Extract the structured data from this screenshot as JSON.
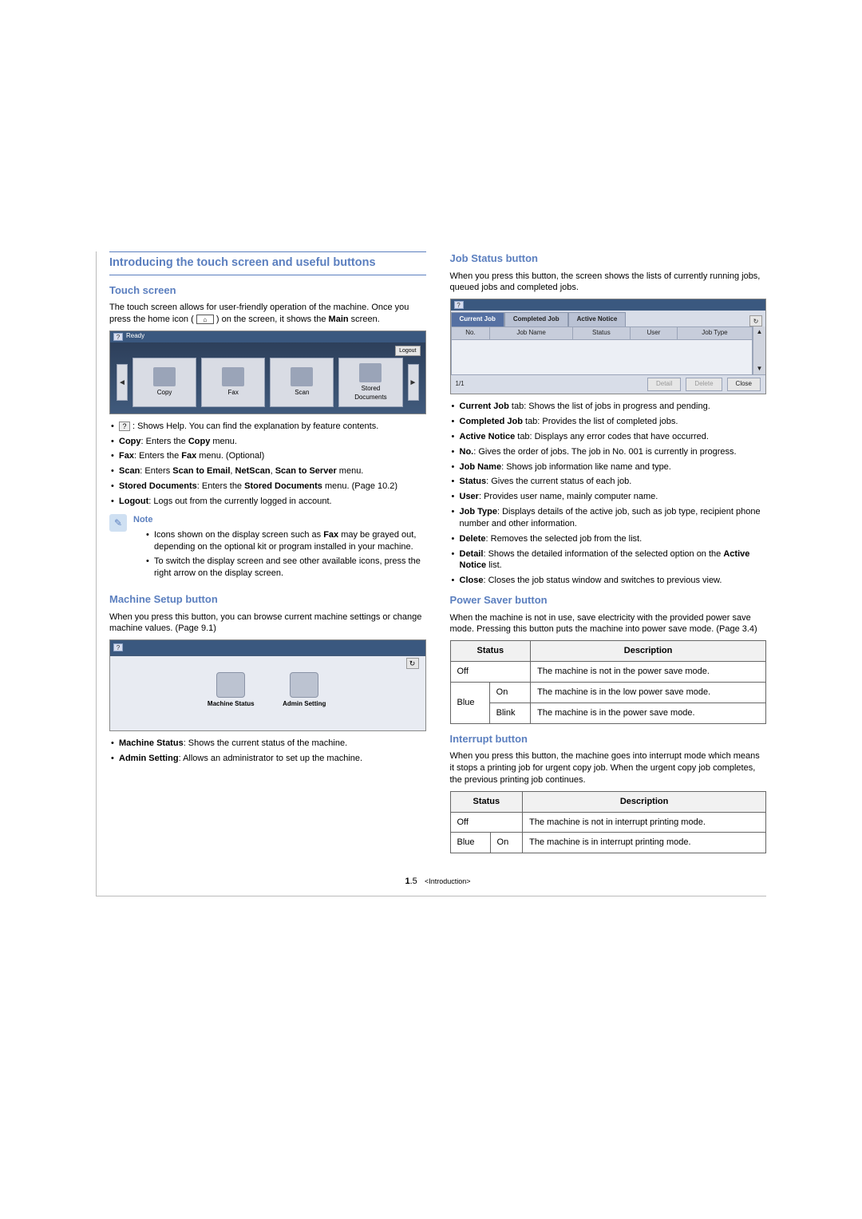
{
  "main_title": "Introducing the touch screen and useful buttons",
  "left": {
    "touch_screen": {
      "title": "Touch screen",
      "intro_a": "The touch screen allows for user-friendly operation of the machine. Once you press the home icon (",
      "intro_b": ") on the screen, it shows the ",
      "intro_bold": "Main",
      "intro_c": " screen.",
      "home_glyph": "⌂",
      "mock": {
        "help": "?",
        "ready": "Ready",
        "logout": "Logout",
        "arrow_left": "◄",
        "arrow_right": "►",
        "items": [
          "Copy",
          "Fax",
          "Scan",
          "Stored\nDocuments"
        ]
      },
      "bullets": [
        {
          "icon": "?",
          "text": ": Shows Help. You can find the explanation by feature contents."
        },
        {
          "b": "Copy",
          "text": ": Enters the ",
          "b2": "Copy",
          "text2": " menu."
        },
        {
          "b": "Fax",
          "text": ": Enters the ",
          "b2": "Fax",
          "text2": " menu. (Optional)"
        },
        {
          "b": "Scan",
          "text": ": Enters ",
          "b2": "Scan to Email",
          "sep": ", ",
          "b3": "NetScan",
          "sep2": ", ",
          "b4": "Scan to Server",
          "text2": " menu."
        },
        {
          "b": "Stored Documents",
          "text": ": Enters the ",
          "b2": "Stored Documents",
          "text2": " menu. (Page 10.2)"
        },
        {
          "b": "Logout",
          "text": ": Logs out from the currently logged in account."
        }
      ],
      "note": {
        "label": "Note",
        "lines": [
          {
            "pre": "Icons shown on the display screen such as ",
            "b": "Fax",
            "post": " may be grayed out, depending on the optional kit or program installed in your machine."
          },
          {
            "text": "To switch the display screen and see other available icons, press the right arrow on the display screen."
          }
        ]
      }
    },
    "machine_setup": {
      "title": "Machine Setup button",
      "intro": "When you press this button, you can browse current machine settings or change machine values. (Page 9.1)",
      "mock": {
        "help": "?",
        "refresh": "↻",
        "items": [
          "Machine Status",
          "Admin Setting"
        ]
      },
      "bullets": [
        {
          "b": "Machine Status",
          "text": ": Shows the current status of the machine."
        },
        {
          "b": "Admin Setting",
          "text": ": Allows an administrator to set up the machine."
        }
      ]
    }
  },
  "right": {
    "job_status": {
      "title": "Job Status button",
      "intro": "When you press this button, the screen shows the lists of currently running jobs, queued jobs and completed jobs.",
      "mock": {
        "help": "?",
        "tabs": [
          "Current Job",
          "Completed Job",
          "Active Notice"
        ],
        "refresh": "↻",
        "headers": [
          "No.",
          "Job Name",
          "Status",
          "User",
          "Job Type"
        ],
        "footer_left": "1/1",
        "buttons": [
          "Detail",
          "Delete",
          "Close"
        ],
        "scroll_up": "▲",
        "scroll_down": "▼"
      },
      "bullets": [
        {
          "b": "Current Job",
          "suffix": " tab: Shows the list of jobs in progress and pending."
        },
        {
          "b": "Completed Job",
          "suffix": " tab: Provides the list of completed jobs."
        },
        {
          "b": "Active Notice",
          "suffix": " tab: Displays any error codes that have occurred."
        },
        {
          "b": "No.",
          "suffix": ": Gives the order of jobs. The job in No. 001 is currently in progress."
        },
        {
          "b": "Job Name",
          "suffix": ": Shows job information like name and type."
        },
        {
          "b": "Status",
          "suffix": ": Gives the current status of each job."
        },
        {
          "b": "User",
          "suffix": ": Provides user name, mainly computer name."
        },
        {
          "b": "Job Type",
          "suffix": ": Displays details of the active job, such as job type, recipient phone number and other information."
        },
        {
          "b": "Delete",
          "suffix": ": Removes the selected job from the list."
        },
        {
          "b": "Detail",
          "pre_suffix": ": Shows the detailed information of the selected option on the ",
          "b2": "Active Notice",
          "suffix2": " list."
        },
        {
          "b": "Close",
          "suffix": ": Closes the job status window and switches to previous view."
        }
      ]
    },
    "power_saver": {
      "title": "Power Saver button",
      "intro": "When the machine is not in use, save electricity with the provided power save mode. Pressing this button puts the machine into power save mode. (Page 3.4)",
      "table": {
        "h_status": "Status",
        "h_desc": "Description",
        "rows": [
          {
            "c1": "Off",
            "c1_span": 2,
            "desc": "The machine is not in the power save mode."
          },
          {
            "c1": "Blue",
            "c1_rowspan": 2,
            "c2": "On",
            "desc": "The machine is in the low power save mode."
          },
          {
            "c2": "Blink",
            "desc": "The machine is in the power save mode."
          }
        ]
      }
    },
    "interrupt": {
      "title": "Interrupt button",
      "intro": "When you press this button, the machine goes into interrupt mode which means it stops a printing job for urgent copy job. When the urgent copy job completes, the previous printing job continues.",
      "table": {
        "h_status": "Status",
        "h_desc": "Description",
        "rows": [
          {
            "c1": "Off",
            "c1_span": 2,
            "desc": "The machine is not in interrupt printing mode."
          },
          {
            "c1": "Blue",
            "c2": "On",
            "desc": "The machine is in interrupt printing mode."
          }
        ]
      }
    }
  },
  "footer": {
    "page": "1",
    "sub": ".5",
    "section": "<Introduction>"
  }
}
